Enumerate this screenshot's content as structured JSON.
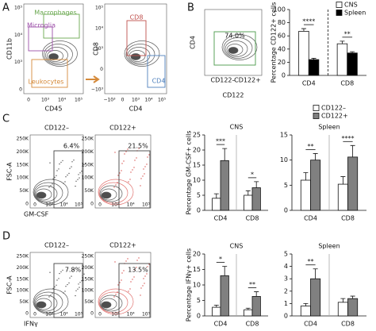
{
  "panel_labels": [
    "A",
    "B",
    "C",
    "D"
  ],
  "flow_plots": [
    {
      "y_label": "CD11b",
      "x_label": "CD45",
      "gates": [
        "Macrophages",
        "Microglia",
        "Leukocytes"
      ],
      "xticks": [
        "0",
        "10³",
        "10⁴",
        "10⁵"
      ],
      "yticks": [
        "0",
        "10³",
        "10⁴",
        "10⁵"
      ]
    },
    {
      "y_label": "CD8",
      "x_label": "CD4",
      "gates": [
        "CD8",
        "CD4"
      ],
      "xticks": [
        "−10³",
        "0",
        "10³",
        "10⁴",
        "10⁵"
      ],
      "yticks": [
        "−10³",
        "0",
        "10³",
        "10⁴",
        "10⁵"
      ]
    },
    {
      "y_label": "CD4",
      "x_label": "CD122",
      "gates": [
        "74.0%",
        "CD122–",
        "CD122+"
      ]
    },
    {
      "title": "CD122–",
      "y_label": "FSC-A",
      "x_label": "GM-CSF",
      "gates": [
        "6.4%"
      ],
      "xticks": [
        "0",
        "10³",
        "10⁴",
        "10⁵"
      ],
      "yticks": [
        "0",
        "50K",
        "100K",
        "150K",
        "200K",
        "250K"
      ]
    },
    {
      "title": "CD122+",
      "gates": [
        "21.5%"
      ],
      "xticks": [
        "0",
        "10³",
        "10⁴",
        "10⁵"
      ],
      "yticks": [
        "0",
        "50K",
        "100K",
        "150K",
        "200K",
        "250K"
      ]
    },
    {
      "title": "CD122–",
      "y_label": "FSC-A",
      "x_label": "IFNγ",
      "gates": [
        "7.8%"
      ],
      "xticks": [
        "0",
        "10³",
        "10⁴",
        "10⁵"
      ],
      "yticks": [
        "0",
        "50K",
        "100K",
        "150K",
        "200K",
        "250K"
      ]
    },
    {
      "title": "CD122+",
      "gates": [
        "13.5%"
      ],
      "xticks": [
        "0",
        "10³",
        "10⁴",
        "10⁵"
      ],
      "yticks": [
        "0",
        "50K",
        "100K",
        "150K",
        "200K",
        "250K"
      ]
    }
  ],
  "chart_data": [
    {
      "type": "bar",
      "ylabel": "Percentage CD122+ cells",
      "categories": [
        "CD4",
        "CD8"
      ],
      "series": [
        {
          "name": "CNS",
          "color": "#ffffff",
          "values": [
            67,
            48
          ],
          "errors": [
            4,
            4
          ]
        },
        {
          "name": "Spleen",
          "color": "#000000",
          "values": [
            24,
            34
          ],
          "errors": [
            2,
            2
          ]
        }
      ],
      "significance": [
        "****",
        "**"
      ],
      "ylim": [
        0,
        100
      ],
      "yticks": [
        0,
        20,
        40,
        60,
        80,
        100
      ],
      "legend": "upper right"
    },
    {
      "type": "bar",
      "title": "CNS",
      "ylabel": "Percentage GM-CSF+ cells",
      "categories": [
        "CD4",
        "CD8"
      ],
      "series": [
        {
          "name": "CD122–",
          "color": "#ffffff",
          "values": [
            4,
            5
          ],
          "errors": [
            1.5,
            1.5
          ]
        },
        {
          "name": "CD122+",
          "color": "#808080",
          "values": [
            16.5,
            7.5
          ],
          "errors": [
            4,
            2
          ]
        }
      ],
      "significance": [
        "***",
        "*"
      ],
      "ylim": [
        0,
        25
      ],
      "yticks": [
        0,
        5,
        10,
        15,
        20,
        25
      ],
      "legend": "above"
    },
    {
      "type": "bar",
      "title": "Spleen",
      "categories": [
        "CD4",
        "CD8"
      ],
      "series": [
        {
          "color": "#ffffff",
          "values": [
            6,
            5.2
          ],
          "errors": [
            1.5,
            1.5
          ]
        },
        {
          "color": "#808080",
          "values": [
            10,
            10.6
          ],
          "errors": [
            1.3,
            2.3
          ]
        }
      ],
      "significance": [
        "**",
        "****"
      ],
      "ylim": [
        0,
        15
      ],
      "yticks": [
        0,
        5,
        10,
        15
      ]
    },
    {
      "type": "bar",
      "title": "CNS",
      "ylabel": "Percentage IFNγ+ cells",
      "categories": [
        "CD4",
        "CD8"
      ],
      "series": [
        {
          "color": "#ffffff",
          "values": [
            2.8,
            2
          ],
          "errors": [
            0.7,
            0.5
          ]
        },
        {
          "color": "#808080",
          "values": [
            13,
            6.3
          ],
          "errors": [
            3,
            1.5
          ]
        }
      ],
      "significance": [
        "*",
        "**"
      ],
      "ylim": [
        0,
        20
      ],
      "yticks": [
        0,
        5,
        10,
        15,
        20
      ]
    },
    {
      "type": "bar",
      "title": "Spleen",
      "categories": [
        "CD4",
        "CD8"
      ],
      "series": [
        {
          "color": "#ffffff",
          "values": [
            0.8,
            1.1
          ],
          "errors": [
            0.2,
            0.3
          ]
        },
        {
          "color": "#808080",
          "values": [
            3,
            1.4
          ],
          "errors": [
            0.8,
            0.2
          ]
        }
      ],
      "significance": [
        "**",
        null
      ],
      "ylim": [
        0,
        5
      ],
      "yticks": [
        0,
        1,
        2,
        3,
        4,
        5
      ]
    }
  ]
}
